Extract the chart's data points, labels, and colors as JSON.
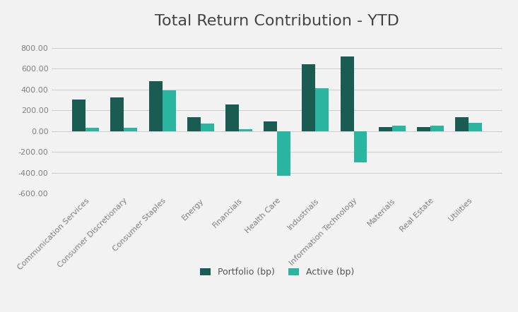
{
  "title": "Total Return Contribution - YTD",
  "categories": [
    "Communication Services",
    "Consumer Discretionary",
    "Consumer Staples",
    "Energy",
    "Financials",
    "Health Care",
    "Industrials",
    "Information Technology",
    "Materials",
    "Real Estate",
    "Utilities"
  ],
  "portfolio": [
    300,
    320,
    480,
    130,
    255,
    90,
    645,
    720,
    40,
    40,
    130
  ],
  "active": [
    30,
    30,
    390,
    70,
    20,
    -430,
    410,
    -300,
    55,
    55,
    80
  ],
  "portfolio_color": "#1a5c52",
  "active_color": "#2ab5a0",
  "background_color": "#f2f2f2",
  "title_fontsize": 16,
  "tick_label_fontsize": 8,
  "legend_fontsize": 9,
  "ylim": [
    -600,
    900
  ],
  "yticks": [
    -600,
    -400,
    -200,
    0,
    200,
    400,
    600,
    800
  ],
  "grid_color": "#d0d0d0"
}
